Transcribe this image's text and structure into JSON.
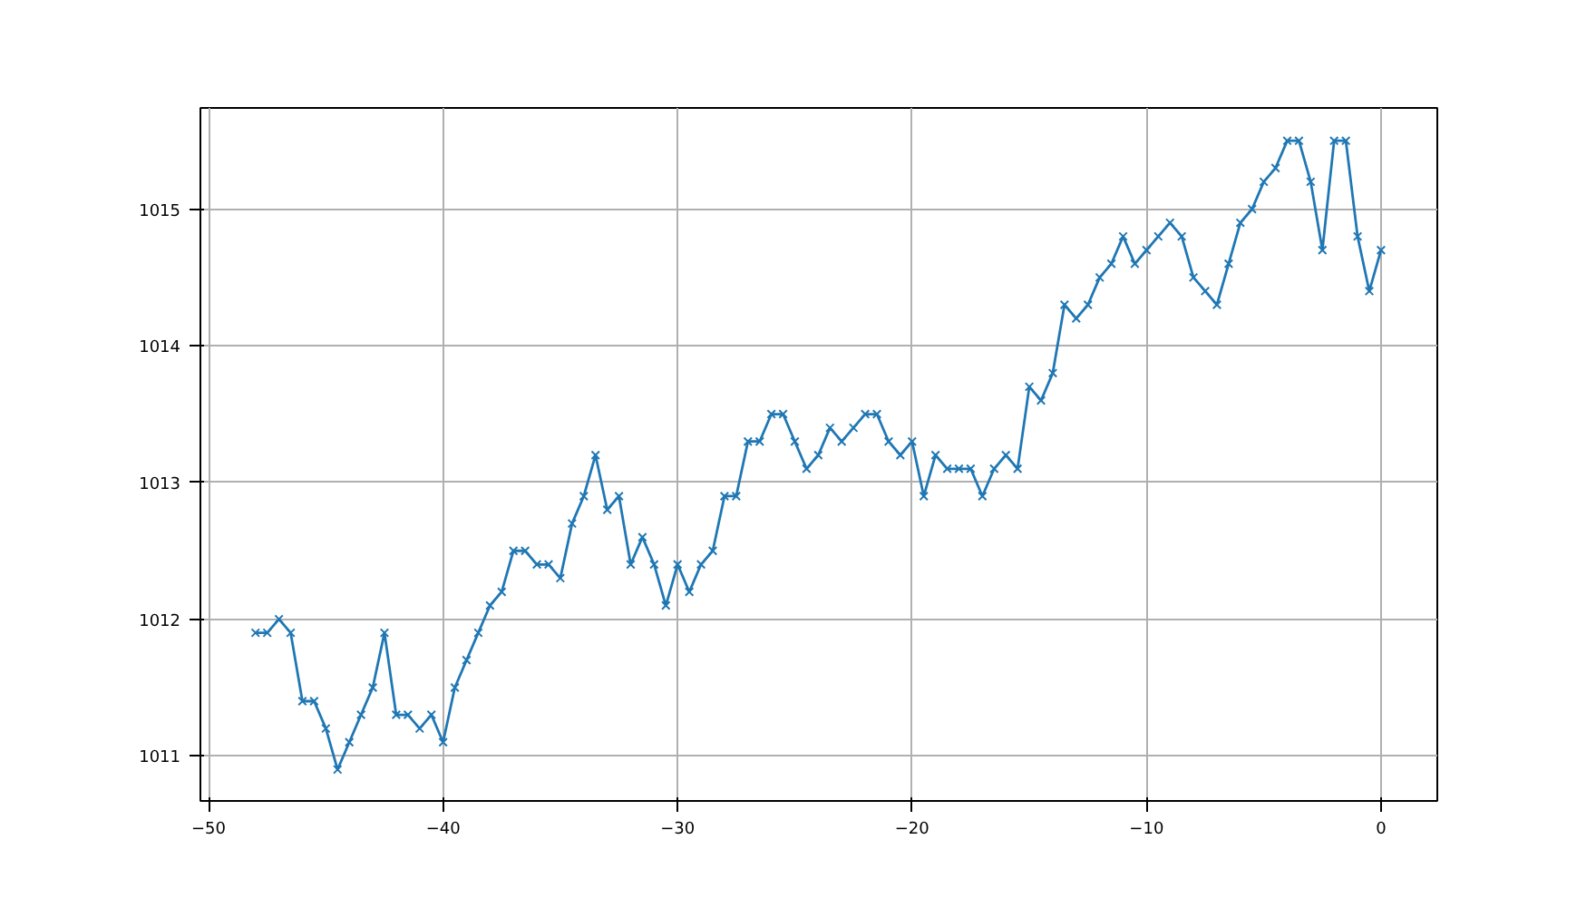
{
  "chart_data": {
    "type": "line",
    "marker": "cross",
    "line_style": "solid",
    "grid": true,
    "xlim": [
      -50.35,
      2.4
    ],
    "xticks": [
      -50,
      -40,
      -30,
      -20,
      -10,
      0
    ],
    "ylim": [
      1010.67,
      1015.74
    ],
    "yticks": [
      1011,
      1012,
      1013,
      1014,
      1015
    ],
    "x": [
      -48,
      -47.5,
      -47,
      -46.5,
      -46,
      -45.5,
      -45,
      -44.5,
      -44,
      -43.5,
      -43,
      -42.5,
      -42,
      -41.5,
      -41,
      -40.5,
      -40,
      -39.5,
      -39,
      -38.5,
      -38,
      -37.5,
      -37,
      -36.5,
      -36,
      -35.5,
      -35,
      -34.5,
      -34,
      -33.5,
      -33,
      -32.5,
      -32,
      -31.5,
      -31,
      -30.5,
      -30,
      -29.5,
      -29,
      -28.5,
      -28,
      -27.5,
      -27,
      -26.5,
      -26,
      -25.5,
      -25,
      -24.5,
      -24,
      -23.5,
      -23,
      -22.5,
      -22,
      -21.5,
      -21,
      -20.5,
      -20,
      -19.5,
      -19,
      -18.5,
      -18,
      -17.5,
      -17,
      -16.5,
      -16,
      -15.5,
      -15,
      -14.5,
      -14,
      -13.5,
      -13,
      -12.5,
      -12,
      -11.5,
      -11,
      -10.5,
      -10,
      -9.5,
      -9,
      -8.5,
      -8,
      -7.5,
      -7,
      -6.5,
      -6,
      -5.5,
      -5,
      -4.5,
      -4,
      -3.5,
      -3,
      -2.5,
      -2,
      -1.5,
      -1,
      -0.5,
      0
    ],
    "series": [
      {
        "color": "#1f77b4",
        "values": [
          1011.9,
          1011.9,
          1012.0,
          1011.9,
          1011.4,
          1011.4,
          1011.2,
          1010.9,
          1011.1,
          1011.3,
          1011.5,
          1011.9,
          1011.3,
          1011.3,
          1011.2,
          1011.3,
          1011.1,
          1011.5,
          1011.7,
          1011.9,
          1012.1,
          1012.2,
          1012.5,
          1012.5,
          1012.4,
          1012.4,
          1012.3,
          1012.7,
          1012.9,
          1013.2,
          1012.8,
          1012.9,
          1012.4,
          1012.6,
          1012.4,
          1012.1,
          1012.4,
          1012.2,
          1012.4,
          1012.5,
          1012.9,
          1012.9,
          1013.3,
          1013.3,
          1013.5,
          1013.5,
          1013.3,
          1013.1,
          1013.2,
          1013.4,
          1013.3,
          1013.4,
          1013.5,
          1013.5,
          1013.3,
          1013.2,
          1013.3,
          1012.9,
          1013.2,
          1013.1,
          1013.1,
          1013.1,
          1012.9,
          1013.1,
          1013.2,
          1013.1,
          1013.7,
          1013.6,
          1013.8,
          1014.3,
          1014.2,
          1014.3,
          1014.5,
          1014.6,
          1014.8,
          1014.6,
          1014.7,
          1014.8,
          1014.9,
          1014.8,
          1014.5,
          1014.4,
          1014.3,
          1014.6,
          1014.9,
          1015.0,
          1015.2,
          1015.3,
          1015.5,
          1015.5,
          1015.2,
          1014.7,
          1015.5,
          1015.5,
          1014.8,
          1014.4,
          1014.7
        ]
      }
    ]
  }
}
